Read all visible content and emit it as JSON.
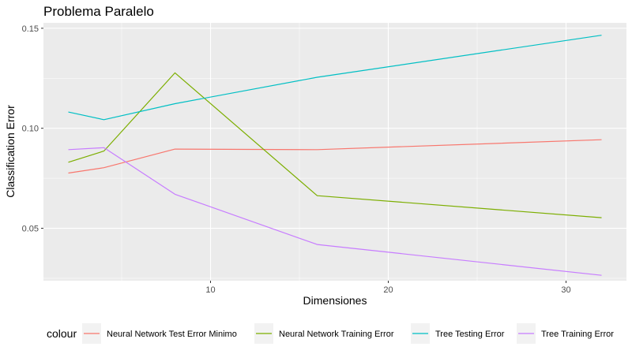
{
  "chart_data": {
    "type": "line",
    "title": "Problema Paralelo",
    "xlabel": "Dimensiones",
    "ylabel": "Classification Error",
    "x": [
      2,
      4,
      8,
      16,
      32
    ],
    "xlim": [
      0.6,
      33.4
    ],
    "ylim": [
      0.0238,
      0.1527
    ],
    "xticks": [
      10,
      20,
      30
    ],
    "yticks": [
      0.05,
      0.1,
      0.15
    ],
    "ytick_labels": [
      "0.05",
      "0.10",
      "0.15"
    ],
    "grid": true,
    "legend": {
      "title": "colour",
      "placement": "bottom"
    },
    "series": [
      {
        "name": "Neural Network Test Error Minimo",
        "color": "#F8766D",
        "values": [
          0.0776,
          0.0803,
          0.0896,
          0.0893,
          0.0943
        ]
      },
      {
        "name": "Neural Network Training Error",
        "color": "#7CAE00",
        "values": [
          0.083,
          0.0886,
          0.1277,
          0.0663,
          0.0553
        ]
      },
      {
        "name": "Tree Testing Error",
        "color": "#00BFC4",
        "values": [
          0.1081,
          0.1043,
          0.1123,
          0.1255,
          0.1465
        ]
      },
      {
        "name": "Tree Training Error",
        "color": "#C77CFF",
        "values": [
          0.0893,
          0.0903,
          0.067,
          0.0419,
          0.0265
        ]
      }
    ]
  }
}
